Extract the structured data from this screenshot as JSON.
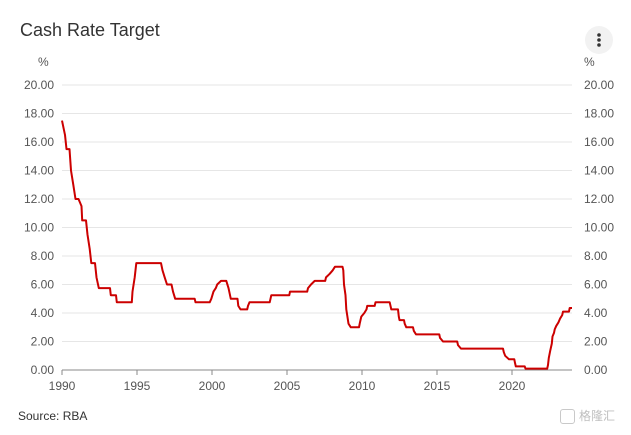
{
  "chart_data": {
    "type": "line",
    "title": "Cash Rate Target",
    "ylabel_left": "%",
    "ylabel_right": "%",
    "source": "Source: RBA",
    "ylim": [
      0,
      20
    ],
    "yticks": [
      "0.00",
      "2.00",
      "4.00",
      "6.00",
      "8.00",
      "10.00",
      "12.00",
      "14.00",
      "16.00",
      "18.00",
      "20.00"
    ],
    "yticks_values": [
      0,
      2,
      4,
      6,
      8,
      10,
      12,
      14,
      16,
      18,
      20
    ],
    "xlim": [
      1990,
      2024
    ],
    "xticks": [
      "1990",
      "1995",
      "2000",
      "2005",
      "2010",
      "2015",
      "2020"
    ],
    "xticks_values": [
      1990,
      1995,
      2000,
      2005,
      2010,
      2015,
      2020
    ],
    "grid": true,
    "series": [
      {
        "color": "#cc0000",
        "points": [
          [
            1990.0,
            17.5
          ],
          [
            1990.1,
            17.0
          ],
          [
            1990.2,
            16.5
          ],
          [
            1990.3,
            15.5
          ],
          [
            1990.5,
            15.5
          ],
          [
            1990.6,
            14.0
          ],
          [
            1990.75,
            13.0
          ],
          [
            1990.9,
            12.0
          ],
          [
            1991.1,
            12.0
          ],
          [
            1991.3,
            11.5
          ],
          [
            1991.35,
            10.5
          ],
          [
            1991.6,
            10.5
          ],
          [
            1991.7,
            9.5
          ],
          [
            1991.85,
            8.5
          ],
          [
            1991.95,
            7.5
          ],
          [
            1992.2,
            7.5
          ],
          [
            1992.3,
            6.5
          ],
          [
            1992.45,
            5.75
          ],
          [
            1993.2,
            5.75
          ],
          [
            1993.25,
            5.25
          ],
          [
            1993.6,
            5.25
          ],
          [
            1993.65,
            4.75
          ],
          [
            1994.65,
            4.75
          ],
          [
            1994.7,
            5.5
          ],
          [
            1994.85,
            6.5
          ],
          [
            1994.95,
            7.5
          ],
          [
            1996.6,
            7.5
          ],
          [
            1996.7,
            7.0
          ],
          [
            1996.85,
            6.5
          ],
          [
            1997.0,
            6.0
          ],
          [
            1997.3,
            6.0
          ],
          [
            1997.4,
            5.5
          ],
          [
            1997.55,
            5.0
          ],
          [
            1998.85,
            5.0
          ],
          [
            1998.9,
            4.75
          ],
          [
            1999.85,
            4.75
          ],
          [
            1999.95,
            5.0
          ],
          [
            2000.1,
            5.5
          ],
          [
            2000.25,
            5.75
          ],
          [
            2000.35,
            6.0
          ],
          [
            2000.6,
            6.25
          ],
          [
            2000.95,
            6.25
          ],
          [
            2001.1,
            5.75
          ],
          [
            2001.25,
            5.0
          ],
          [
            2001.7,
            5.0
          ],
          [
            2001.75,
            4.5
          ],
          [
            2001.9,
            4.25
          ],
          [
            2002.35,
            4.25
          ],
          [
            2002.4,
            4.5
          ],
          [
            2002.5,
            4.75
          ],
          [
            2003.85,
            4.75
          ],
          [
            2003.9,
            5.0
          ],
          [
            2003.95,
            5.25
          ],
          [
            2005.15,
            5.25
          ],
          [
            2005.2,
            5.5
          ],
          [
            2006.35,
            5.5
          ],
          [
            2006.4,
            5.75
          ],
          [
            2006.6,
            6.0
          ],
          [
            2006.85,
            6.25
          ],
          [
            2007.55,
            6.25
          ],
          [
            2007.6,
            6.5
          ],
          [
            2007.85,
            6.75
          ],
          [
            2008.05,
            7.0
          ],
          [
            2008.2,
            7.25
          ],
          [
            2008.7,
            7.25
          ],
          [
            2008.75,
            7.0
          ],
          [
            2008.8,
            6.0
          ],
          [
            2008.9,
            5.25
          ],
          [
            2008.95,
            4.25
          ],
          [
            2009.1,
            3.25
          ],
          [
            2009.25,
            3.0
          ],
          [
            2009.8,
            3.0
          ],
          [
            2009.85,
            3.25
          ],
          [
            2009.9,
            3.5
          ],
          [
            2009.95,
            3.75
          ],
          [
            2010.15,
            4.0
          ],
          [
            2010.3,
            4.25
          ],
          [
            2010.35,
            4.5
          ],
          [
            2010.85,
            4.5
          ],
          [
            2010.9,
            4.75
          ],
          [
            2011.85,
            4.75
          ],
          [
            2011.9,
            4.5
          ],
          [
            2011.95,
            4.25
          ],
          [
            2012.4,
            4.25
          ],
          [
            2012.45,
            3.75
          ],
          [
            2012.5,
            3.5
          ],
          [
            2012.8,
            3.5
          ],
          [
            2012.85,
            3.25
          ],
          [
            2012.95,
            3.0
          ],
          [
            2013.4,
            3.0
          ],
          [
            2013.45,
            2.75
          ],
          [
            2013.6,
            2.5
          ],
          [
            2015.15,
            2.5
          ],
          [
            2015.2,
            2.25
          ],
          [
            2015.4,
            2.0
          ],
          [
            2016.35,
            2.0
          ],
          [
            2016.4,
            1.75
          ],
          [
            2016.6,
            1.5
          ],
          [
            2019.4,
            1.5
          ],
          [
            2019.45,
            1.25
          ],
          [
            2019.55,
            1.0
          ],
          [
            2019.8,
            0.75
          ],
          [
            2020.15,
            0.75
          ],
          [
            2020.2,
            0.5
          ],
          [
            2020.25,
            0.25
          ],
          [
            2020.85,
            0.25
          ],
          [
            2020.9,
            0.1
          ],
          [
            2022.35,
            0.1
          ],
          [
            2022.4,
            0.35
          ],
          [
            2022.45,
            0.85
          ],
          [
            2022.55,
            1.35
          ],
          [
            2022.65,
            1.85
          ],
          [
            2022.7,
            2.35
          ],
          [
            2022.8,
            2.6
          ],
          [
            2022.85,
            2.85
          ],
          [
            2022.95,
            3.1
          ],
          [
            2023.1,
            3.35
          ],
          [
            2023.2,
            3.6
          ],
          [
            2023.35,
            3.85
          ],
          [
            2023.4,
            4.1
          ],
          [
            2023.8,
            4.1
          ],
          [
            2023.85,
            4.35
          ],
          [
            2024.0,
            4.35
          ]
        ]
      }
    ]
  },
  "watermark": "格隆汇",
  "menu_icon": "more-vertical-icon"
}
